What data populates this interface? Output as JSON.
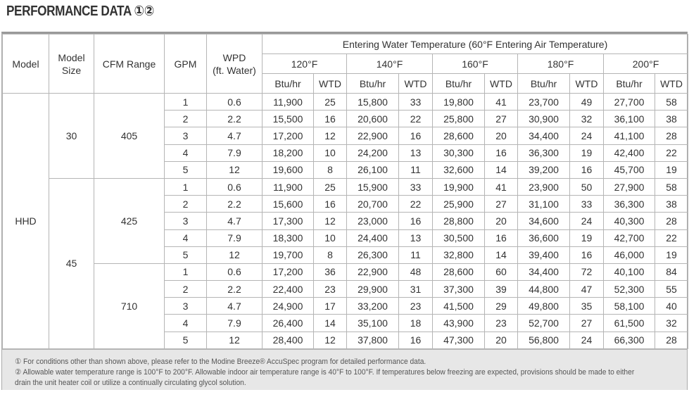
{
  "title": "PERFORMANCE DATA ①②",
  "table": {
    "headers": {
      "model": "Model",
      "model_size": [
        "Model",
        "Size"
      ],
      "cfm_range": "CFM Range",
      "gpm": "GPM",
      "wpd": [
        "WPD",
        "(ft. Water)"
      ],
      "group": "Entering Water Temperature (60°F Entering Air Temperature)",
      "temperatures": [
        "120°F",
        "140°F",
        "160°F",
        "180°F",
        "200°F"
      ],
      "btu": "Btu/hr",
      "wtd": "WTD"
    },
    "models": [
      {
        "name": "HHD",
        "sizes": [
          {
            "size": "30",
            "cfm_groups": [
              {
                "cfm": "405",
                "rows": [
                  {
                    "gpm": "1",
                    "wpd": "0.6",
                    "values": [
                      "11,900",
                      "25",
                      "15,800",
                      "33",
                      "19,800",
                      "41",
                      "23,700",
                      "49",
                      "27,700",
                      "58"
                    ]
                  },
                  {
                    "gpm": "2",
                    "wpd": "2.2",
                    "values": [
                      "15,500",
                      "16",
                      "20,600",
                      "22",
                      "25,800",
                      "27",
                      "30,900",
                      "32",
                      "36,100",
                      "38"
                    ]
                  },
                  {
                    "gpm": "3",
                    "wpd": "4.7",
                    "values": [
                      "17,200",
                      "12",
                      "22,900",
                      "16",
                      "28,600",
                      "20",
                      "34,400",
                      "24",
                      "41,100",
                      "28"
                    ]
                  },
                  {
                    "gpm": "4",
                    "wpd": "7.9",
                    "values": [
                      "18,200",
                      "10",
                      "24,200",
                      "13",
                      "30,300",
                      "16",
                      "36,300",
                      "19",
                      "42,400",
                      "22"
                    ]
                  },
                  {
                    "gpm": "5",
                    "wpd": "12",
                    "values": [
                      "19,600",
                      "8",
                      "26,100",
                      "11",
                      "32,600",
                      "14",
                      "39,200",
                      "16",
                      "45,700",
                      "19"
                    ]
                  }
                ]
              }
            ]
          },
          {
            "size": "45",
            "cfm_groups": [
              {
                "cfm": "425",
                "rows": [
                  {
                    "gpm": "1",
                    "wpd": "0.6",
                    "values": [
                      "11,900",
                      "25",
                      "15,900",
                      "33",
                      "19,900",
                      "41",
                      "23,900",
                      "50",
                      "27,900",
                      "58"
                    ]
                  },
                  {
                    "gpm": "2",
                    "wpd": "2.2",
                    "values": [
                      "15,600",
                      "16",
                      "20,700",
                      "22",
                      "25,900",
                      "27",
                      "31,100",
                      "33",
                      "36,300",
                      "38"
                    ]
                  },
                  {
                    "gpm": "3",
                    "wpd": "4.7",
                    "values": [
                      "17,300",
                      "12",
                      "23,000",
                      "16",
                      "28,800",
                      "20",
                      "34,600",
                      "24",
                      "40,300",
                      "28"
                    ]
                  },
                  {
                    "gpm": "4",
                    "wpd": "7.9",
                    "values": [
                      "18,300",
                      "10",
                      "24,400",
                      "13",
                      "30,500",
                      "16",
                      "36,600",
                      "19",
                      "42,700",
                      "22"
                    ]
                  },
                  {
                    "gpm": "5",
                    "wpd": "12",
                    "values": [
                      "19,700",
                      "8",
                      "26,300",
                      "11",
                      "32,800",
                      "14",
                      "39,400",
                      "16",
                      "46,000",
                      "19"
                    ]
                  }
                ]
              },
              {
                "cfm": "710",
                "rows": [
                  {
                    "gpm": "1",
                    "wpd": "0.6",
                    "values": [
                      "17,200",
                      "36",
                      "22,900",
                      "48",
                      "28,600",
                      "60",
                      "34,400",
                      "72",
                      "40,100",
                      "84"
                    ]
                  },
                  {
                    "gpm": "2",
                    "wpd": "2.2",
                    "values": [
                      "22,400",
                      "23",
                      "29,900",
                      "31",
                      "37,300",
                      "39",
                      "44,800",
                      "47",
                      "52,300",
                      "55"
                    ]
                  },
                  {
                    "gpm": "3",
                    "wpd": "4.7",
                    "values": [
                      "24,900",
                      "17",
                      "33,200",
                      "23",
                      "41,500",
                      "29",
                      "49,800",
                      "35",
                      "58,100",
                      "40"
                    ]
                  },
                  {
                    "gpm": "4",
                    "wpd": "7.9",
                    "values": [
                      "26,400",
                      "14",
                      "35,100",
                      "18",
                      "43,900",
                      "23",
                      "52,700",
                      "27",
                      "61,500",
                      "32"
                    ]
                  },
                  {
                    "gpm": "5",
                    "wpd": "12",
                    "values": [
                      "28,400",
                      "12",
                      "37,800",
                      "16",
                      "47,300",
                      "20",
                      "56,800",
                      "24",
                      "66,300",
                      "28"
                    ]
                  }
                ]
              }
            ]
          }
        ]
      }
    ]
  },
  "footnotes": [
    "① For conditions other than shown above, please refer to the Modine Breeze® AccuSpec program for detailed performance data.",
    "② Allowable water temperature range is 100°F to 200°F. Allowable indoor air temperature range is 40°F to 100°F. If temperatures below freezing are expected, provisions should be made to either",
    "drain the unit heater coil or utilize a continually circulating glycol solution."
  ]
}
